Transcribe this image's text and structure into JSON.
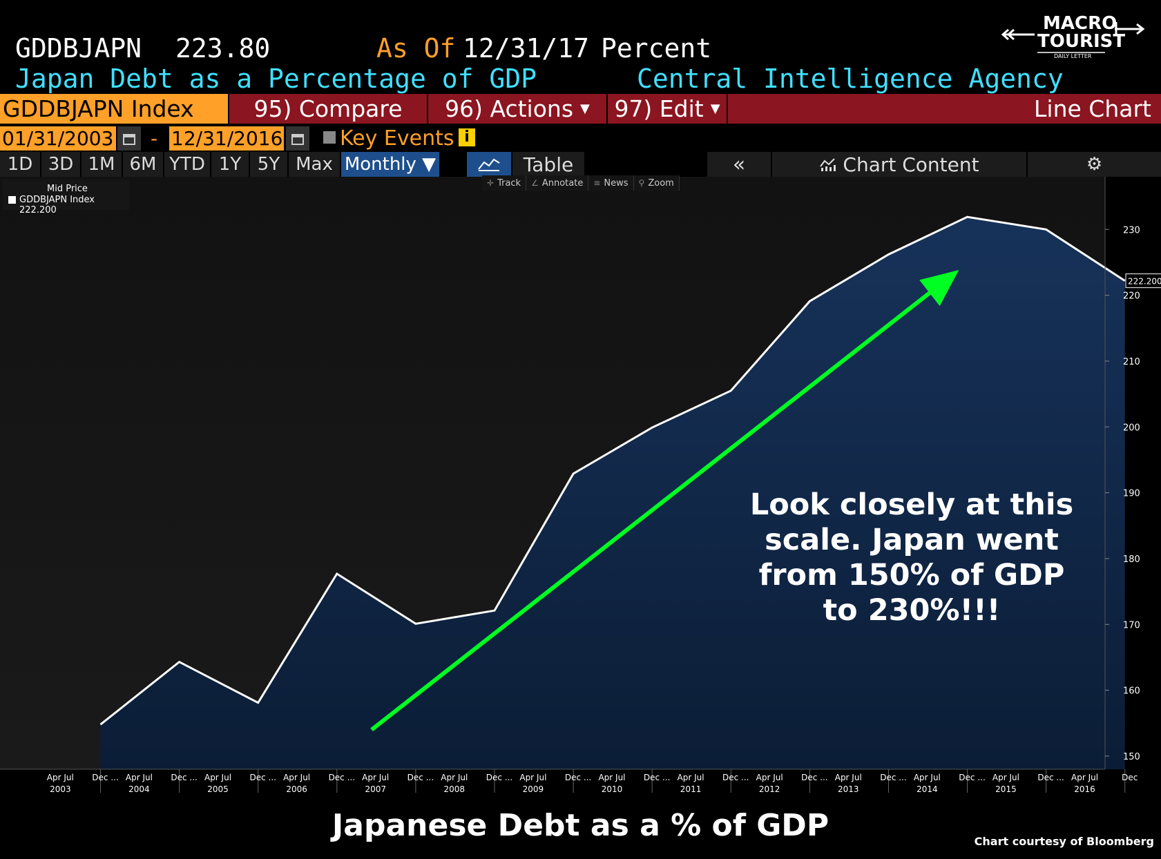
{
  "header": {
    "ticker": "GDDBJAPN",
    "value": "223.80",
    "as_of_label": "As Of",
    "as_of_date": "12/31/17",
    "units": "Percent",
    "subtitle": "Japan Debt as a Percentage of GDP",
    "source": "Central Intelligence Agency"
  },
  "logo": {
    "text_line1": "MACRO",
    "text_line2": "TOURIST",
    "text_line3": "DAILY LETTER"
  },
  "function_bar": {
    "index": "GDDBJAPN Index",
    "compare": "95) Compare",
    "actions": "96) Actions",
    "edit": "97) Edit",
    "chart_type": "Line Chart"
  },
  "date_range": {
    "start": "01/31/2003",
    "separator": "-",
    "end": "12/31/2016",
    "key_events": "Key Events"
  },
  "period_tabs": [
    {
      "label": "1D",
      "active": false
    },
    {
      "label": "3D",
      "active": false
    },
    {
      "label": "1M",
      "active": false
    },
    {
      "label": "6M",
      "active": false
    },
    {
      "label": "YTD",
      "active": false
    },
    {
      "label": "1Y",
      "active": false
    },
    {
      "label": "5Y",
      "active": false
    },
    {
      "label": "Max",
      "active": false
    },
    {
      "label": "Monthly ▼",
      "active": true
    }
  ],
  "toolbar": {
    "table": "Table",
    "collapse": "«",
    "chart_content": "Chart Content",
    "mini": [
      "Track",
      "Annotate",
      "News",
      "Zoom"
    ]
  },
  "legend": {
    "header": "Mid Price",
    "entry": "GDDBJAPN Index 222.200"
  },
  "colors": {
    "orange": "#ffa028",
    "cyan": "#40e0ff",
    "red_bar": "#8b1520",
    "area_fill": "#0f2440",
    "arrow": "#00ff22"
  },
  "annotation": "Look closely at this\nscale.  Japan went\nfrom 150% of GDP\nto 230%!!!",
  "bottom_title": "Japanese Debt as a % of GDP",
  "credit": "Chart courtesy of Bloomberg",
  "chart_data": {
    "type": "area",
    "title": "",
    "xlabel": "",
    "ylabel": "",
    "x": [
      2003.96,
      2004.96,
      2005.96,
      2006.96,
      2007.96,
      2008.96,
      2009.96,
      2010.96,
      2011.96,
      2012.96,
      2013.96,
      2014.96,
      2015.96,
      2016.96
    ],
    "series": [
      {
        "name": "GDDBJAPN Index",
        "values": [
          154.8,
          164.3,
          158.1,
          177.7,
          170.1,
          172.1,
          192.9,
          199.9,
          205.5,
          219.1,
          226.2,
          231.9,
          230.0,
          222.2
        ]
      }
    ],
    "last_value_label": "222.200",
    "ylim": [
      148,
      238
    ],
    "yticks": [
      150,
      160,
      170,
      180,
      190,
      200,
      210,
      220,
      230
    ],
    "xlim": [
      2003.0,
      2017.05
    ],
    "xtick_years": [
      2003,
      2004,
      2005,
      2006,
      2007,
      2008,
      2009,
      2010,
      2011,
      2012,
      2013,
      2014,
      2015,
      2016
    ],
    "xtick_month_labels": [
      "Apr Jul",
      "Dec ..."
    ],
    "last_dec_label": "Dec",
    "arrow": {
      "from": {
        "x": 2007.4,
        "y": 154.0
      },
      "to": {
        "x": 2014.85,
        "y": 223.5
      }
    },
    "grid": false
  }
}
